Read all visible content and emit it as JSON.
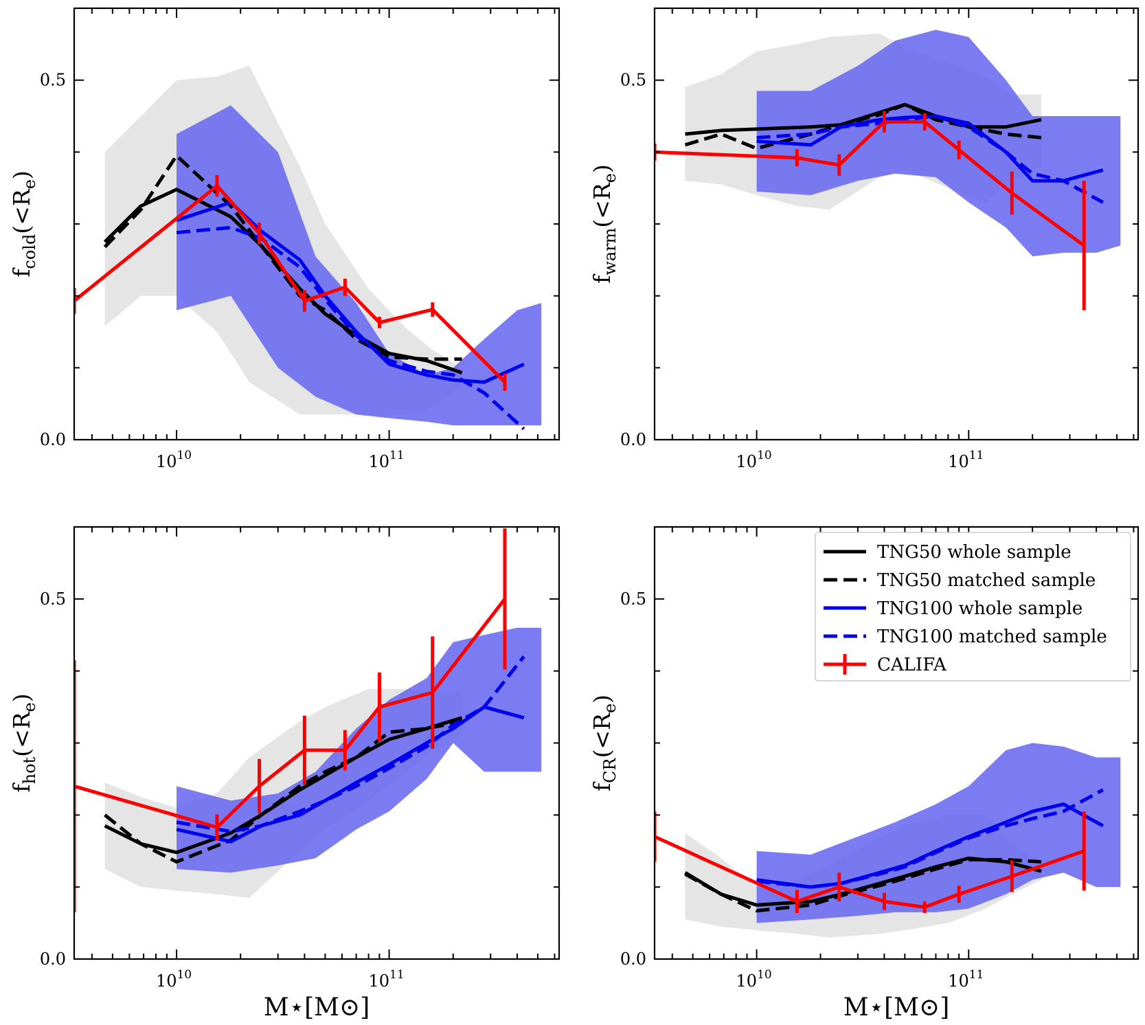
{
  "figure": {
    "x_axis_label": "M⋆[M⊙]",
    "x_ticks": [
      "10",
      "10"
    ],
    "x_tick_exponents": [
      "10",
      "11"
    ],
    "x_tick_values": [
      10000000000,
      100000000000
    ],
    "y_ticks": [
      "0.0",
      "0.5"
    ],
    "y_tick_values": [
      0,
      0.5
    ]
  },
  "colors": {
    "tng50": "#000000",
    "tng100": "#0000ee",
    "califa": "#ff0000",
    "tng50_band": "#e5e5e5",
    "tng100_band": "#6a6af0"
  },
  "legend": {
    "position": "top-right of bottom-right panel",
    "entries": [
      {
        "label": "TNG50 whole sample",
        "series": "tng50_whole"
      },
      {
        "label": "TNG50 matched sample",
        "series": "tng50_matched"
      },
      {
        "label": "TNG100 whole sample",
        "series": "tng100_whole"
      },
      {
        "label": "TNG100 matched sample",
        "series": "tng100_matched"
      },
      {
        "label": "CALIFA",
        "series": "califa"
      }
    ]
  },
  "chart_data": [
    {
      "type": "line",
      "panel": "cold",
      "ylabel_main": "f",
      "ylabel_sub": "cold",
      "ylabel_tail": "(<R",
      "ylabel_tail_sub": "e",
      "ylabel_close": ")",
      "xscale": "log",
      "xlim": [
        3300000000,
        630000000000
      ],
      "ylim": [
        0,
        0.6
      ],
      "show_xlabel": false,
      "show_legend": false,
      "series": [
        {
          "name": "TNG50 band",
          "kind": "band",
          "x": [
            4.6,
            6.8,
            10,
            15.5,
            22,
            38,
            50,
            80,
            120,
            160,
            220
          ],
          "lower": [
            0.158,
            0.2,
            0.2,
            0.15,
            0.08,
            0.035,
            0.035,
            0.035,
            0.035,
            0.045,
            0.075
          ],
          "upper": [
            0.4,
            0.45,
            0.5,
            0.505,
            0.52,
            0.38,
            0.3,
            0.21,
            0.155,
            0.125,
            0.1
          ]
        },
        {
          "name": "TNG100 band",
          "kind": "band",
          "x": [
            10,
            18,
            30,
            45,
            70,
            100,
            150,
            200,
            280,
            400,
            520
          ],
          "lower": [
            0.18,
            0.2,
            0.1,
            0.06,
            0.035,
            0.03,
            0.025,
            0.02,
            0.02,
            0.02,
            0.02
          ],
          "upper": [
            0.425,
            0.465,
            0.4,
            0.255,
            0.19,
            0.12,
            0.09,
            0.1,
            0.14,
            0.18,
            0.19
          ]
        },
        {
          "name": "tng50_whole",
          "kind": "line",
          "style": "solid",
          "x": [
            4.6,
            6.8,
            10,
            18,
            25,
            38,
            50,
            70,
            100,
            150,
            220
          ],
          "y": [
            0.275,
            0.325,
            0.348,
            0.31,
            0.27,
            0.21,
            0.175,
            0.145,
            0.12,
            0.11,
            0.093
          ]
        },
        {
          "name": "tng50_matched",
          "kind": "line",
          "style": "dashed",
          "x": [
            4.6,
            6.8,
            10,
            18,
            25,
            38,
            50,
            70,
            100,
            150,
            220
          ],
          "y": [
            0.268,
            0.32,
            0.395,
            0.325,
            0.27,
            0.2,
            0.18,
            0.14,
            0.115,
            0.112,
            0.112
          ]
        },
        {
          "name": "tng100_whole",
          "kind": "line",
          "style": "solid",
          "x": [
            10,
            18,
            25,
            38,
            50,
            70,
            100,
            150,
            200,
            280,
            430
          ],
          "y": [
            0.305,
            0.33,
            0.29,
            0.25,
            0.2,
            0.15,
            0.105,
            0.09,
            0.083,
            0.08,
            0.105
          ]
        },
        {
          "name": "tng100_matched",
          "kind": "line",
          "style": "dashed",
          "x": [
            10,
            18,
            25,
            38,
            50,
            70,
            100,
            150,
            200,
            280,
            430
          ],
          "y": [
            0.288,
            0.295,
            0.28,
            0.24,
            0.195,
            0.145,
            0.11,
            0.095,
            0.09,
            0.065,
            0.015
          ]
        },
        {
          "name": "califa",
          "kind": "errorline",
          "x": [
            3.3,
            15.5,
            24.5,
            40,
            62,
            90,
            160,
            350
          ],
          "y": [
            0.193,
            0.353,
            0.287,
            0.193,
            0.212,
            0.163,
            0.181,
            0.08
          ],
          "err": [
            0.018,
            0.015,
            0.015,
            0.015,
            0.012,
            0.008,
            0.01,
            0.012
          ]
        }
      ]
    },
    {
      "type": "line",
      "panel": "warm",
      "ylabel_main": "f",
      "ylabel_sub": "warm",
      "ylabel_tail": "(<R",
      "ylabel_tail_sub": "e",
      "ylabel_close": ")",
      "xscale": "log",
      "xlim": [
        3300000000,
        630000000000
      ],
      "ylim": [
        0,
        0.6
      ],
      "show_xlabel": false,
      "show_legend": false,
      "series": [
        {
          "name": "TNG50 band",
          "kind": "band",
          "x": [
            4.6,
            6.8,
            10,
            15.5,
            22,
            38,
            50,
            80,
            120,
            160,
            220
          ],
          "lower": [
            0.36,
            0.355,
            0.34,
            0.325,
            0.32,
            0.365,
            0.375,
            0.35,
            0.33,
            0.36,
            0.38
          ],
          "upper": [
            0.49,
            0.508,
            0.54,
            0.55,
            0.56,
            0.565,
            0.545,
            0.525,
            0.505,
            0.48,
            0.48
          ]
        },
        {
          "name": "TNG100 band",
          "kind": "band",
          "x": [
            10,
            18,
            30,
            45,
            70,
            100,
            150,
            200,
            280,
            400,
            520
          ],
          "lower": [
            0.345,
            0.34,
            0.36,
            0.37,
            0.365,
            0.33,
            0.295,
            0.255,
            0.26,
            0.26,
            0.27
          ],
          "upper": [
            0.485,
            0.485,
            0.52,
            0.555,
            0.57,
            0.56,
            0.5,
            0.45,
            0.45,
            0.45,
            0.45
          ]
        },
        {
          "name": "tng50_whole",
          "kind": "line",
          "style": "solid",
          "x": [
            4.6,
            6.8,
            10,
            18,
            25,
            38,
            50,
            70,
            100,
            150,
            220
          ],
          "y": [
            0.425,
            0.43,
            0.432,
            0.435,
            0.438,
            0.455,
            0.466,
            0.45,
            0.435,
            0.435,
            0.445
          ]
        },
        {
          "name": "tng50_matched",
          "kind": "line",
          "style": "dashed",
          "x": [
            4.6,
            6.8,
            10,
            18,
            25,
            38,
            50,
            70,
            100,
            150,
            220
          ],
          "y": [
            0.41,
            0.425,
            0.405,
            0.425,
            0.438,
            0.452,
            0.466,
            0.445,
            0.435,
            0.425,
            0.42
          ]
        },
        {
          "name": "tng100_whole",
          "kind": "line",
          "style": "solid",
          "x": [
            10,
            18,
            25,
            38,
            50,
            70,
            100,
            150,
            200,
            280,
            430
          ],
          "y": [
            0.415,
            0.41,
            0.435,
            0.445,
            0.448,
            0.45,
            0.44,
            0.4,
            0.36,
            0.36,
            0.375
          ]
        },
        {
          "name": "tng100_matched",
          "kind": "line",
          "style": "dashed",
          "x": [
            10,
            18,
            25,
            38,
            50,
            70,
            100,
            150,
            200,
            280,
            430
          ],
          "y": [
            0.42,
            0.425,
            0.435,
            0.44,
            0.445,
            0.45,
            0.435,
            0.4,
            0.37,
            0.36,
            0.33
          ]
        },
        {
          "name": "califa",
          "kind": "errorline",
          "x": [
            3.3,
            15.5,
            24.5,
            40,
            62,
            90,
            160,
            350
          ],
          "y": [
            0.4,
            0.392,
            0.382,
            0.442,
            0.442,
            0.403,
            0.343,
            0.27
          ],
          "err": [
            0.012,
            0.012,
            0.015,
            0.015,
            0.012,
            0.013,
            0.03,
            0.09
          ]
        }
      ]
    },
    {
      "type": "line",
      "panel": "hot",
      "ylabel_main": "f",
      "ylabel_sub": "hot",
      "ylabel_tail": "(<R",
      "ylabel_tail_sub": "e",
      "ylabel_close": ")",
      "xscale": "log",
      "xlim": [
        3300000000,
        630000000000
      ],
      "ylim": [
        0,
        0.6
      ],
      "show_xlabel": true,
      "show_legend": false,
      "series": [
        {
          "name": "TNG50 band",
          "kind": "band",
          "x": [
            4.6,
            6.8,
            10,
            15.5,
            22,
            38,
            50,
            80,
            120,
            160,
            220
          ],
          "lower": [
            0.125,
            0.1,
            0.095,
            0.09,
            0.085,
            0.15,
            0.18,
            0.22,
            0.26,
            0.29,
            0.31
          ],
          "upper": [
            0.245,
            0.225,
            0.21,
            0.23,
            0.28,
            0.33,
            0.35,
            0.375,
            0.375,
            0.37,
            0.37
          ]
        },
        {
          "name": "TNG100 band",
          "kind": "band",
          "x": [
            10,
            18,
            30,
            45,
            70,
            100,
            150,
            200,
            280,
            400,
            520
          ],
          "lower": [
            0.125,
            0.12,
            0.13,
            0.14,
            0.18,
            0.205,
            0.25,
            0.3,
            0.26,
            0.26,
            0.26
          ],
          "upper": [
            0.24,
            0.22,
            0.23,
            0.26,
            0.32,
            0.36,
            0.39,
            0.44,
            0.45,
            0.46,
            0.46
          ]
        },
        {
          "name": "tng50_whole",
          "kind": "line",
          "style": "solid",
          "x": [
            4.6,
            6.8,
            10,
            18,
            25,
            38,
            50,
            70,
            100,
            150,
            220
          ],
          "y": [
            0.185,
            0.16,
            0.148,
            0.175,
            0.2,
            0.235,
            0.255,
            0.28,
            0.305,
            0.32,
            0.335
          ]
        },
        {
          "name": "tng50_matched",
          "kind": "line",
          "style": "dashed",
          "x": [
            4.6,
            6.8,
            10,
            18,
            25,
            38,
            50,
            70,
            100,
            150,
            220
          ],
          "y": [
            0.2,
            0.16,
            0.135,
            0.165,
            0.2,
            0.24,
            0.26,
            0.28,
            0.315,
            0.32,
            0.33
          ]
        },
        {
          "name": "tng100_whole",
          "kind": "line",
          "style": "solid",
          "x": [
            10,
            18,
            25,
            38,
            50,
            70,
            100,
            150,
            200,
            280,
            430
          ],
          "y": [
            0.18,
            0.163,
            0.185,
            0.2,
            0.22,
            0.245,
            0.27,
            0.3,
            0.32,
            0.35,
            0.335
          ]
        },
        {
          "name": "tng100_matched",
          "kind": "line",
          "style": "dashed",
          "x": [
            10,
            18,
            25,
            38,
            50,
            70,
            100,
            150,
            200,
            280,
            430
          ],
          "y": [
            0.19,
            0.177,
            0.185,
            0.205,
            0.22,
            0.24,
            0.265,
            0.295,
            0.325,
            0.35,
            0.42
          ]
        },
        {
          "name": "califa",
          "kind": "errorline",
          "x": [
            3.3,
            15.5,
            24.5,
            40,
            62,
            90,
            160,
            350
          ],
          "y": [
            0.24,
            0.183,
            0.24,
            0.29,
            0.29,
            0.35,
            0.37,
            0.5
          ],
          "err": [
            0.175,
            0.018,
            0.038,
            0.048,
            0.028,
            0.048,
            0.078,
            0.098
          ]
        }
      ]
    },
    {
      "type": "line",
      "panel": "CR",
      "ylabel_main": "f",
      "ylabel_sub": "CR",
      "ylabel_tail": "(<R",
      "ylabel_tail_sub": "e",
      "ylabel_close": ")",
      "xscale": "log",
      "xlim": [
        3300000000,
        630000000000
      ],
      "ylim": [
        0,
        0.6
      ],
      "show_xlabel": true,
      "show_legend": true,
      "series": [
        {
          "name": "TNG50 band",
          "kind": "band",
          "x": [
            4.6,
            6.8,
            10,
            15.5,
            22,
            38,
            50,
            80,
            120,
            160,
            220
          ],
          "lower": [
            0.055,
            0.045,
            0.04,
            0.035,
            0.03,
            0.035,
            0.04,
            0.05,
            0.07,
            0.09,
            0.11
          ],
          "upper": [
            0.175,
            0.14,
            0.1,
            0.11,
            0.13,
            0.17,
            0.185,
            0.2,
            0.2,
            0.16,
            0.13
          ]
        },
        {
          "name": "TNG100 band",
          "kind": "band",
          "x": [
            10,
            18,
            30,
            45,
            70,
            100,
            150,
            200,
            280,
            400,
            520
          ],
          "lower": [
            0.05,
            0.055,
            0.06,
            0.065,
            0.065,
            0.07,
            0.09,
            0.11,
            0.12,
            0.1,
            0.1
          ],
          "upper": [
            0.15,
            0.145,
            0.17,
            0.19,
            0.215,
            0.24,
            0.29,
            0.3,
            0.295,
            0.28,
            0.28
          ]
        },
        {
          "name": "tng50_whole",
          "kind": "line",
          "style": "solid",
          "x": [
            4.6,
            6.8,
            10,
            18,
            25,
            38,
            50,
            70,
            100,
            150,
            220
          ],
          "y": [
            0.12,
            0.09,
            0.075,
            0.08,
            0.09,
            0.105,
            0.115,
            0.128,
            0.14,
            0.135,
            0.122
          ]
        },
        {
          "name": "tng50_matched",
          "kind": "line",
          "style": "dashed",
          "x": [
            4.6,
            6.8,
            10,
            18,
            25,
            38,
            50,
            70,
            100,
            150,
            220
          ],
          "y": [
            0.118,
            0.09,
            0.067,
            0.075,
            0.088,
            0.102,
            0.112,
            0.125,
            0.138,
            0.138,
            0.135
          ]
        },
        {
          "name": "tng100_whole",
          "kind": "line",
          "style": "solid",
          "x": [
            10,
            18,
            25,
            38,
            50,
            70,
            100,
            150,
            200,
            280,
            430
          ],
          "y": [
            0.11,
            0.1,
            0.105,
            0.12,
            0.13,
            0.15,
            0.17,
            0.19,
            0.205,
            0.215,
            0.185
          ]
        },
        {
          "name": "tng100_matched",
          "kind": "line",
          "style": "dashed",
          "x": [
            10,
            18,
            25,
            38,
            50,
            70,
            100,
            150,
            200,
            280,
            430
          ],
          "y": [
            0.108,
            0.1,
            0.105,
            0.118,
            0.128,
            0.148,
            0.168,
            0.185,
            0.195,
            0.205,
            0.235
          ]
        },
        {
          "name": "califa",
          "kind": "errorline",
          "x": [
            3.3,
            15.5,
            24.5,
            40,
            62,
            90,
            160,
            350
          ],
          "y": [
            0.17,
            0.08,
            0.1,
            0.08,
            0.072,
            0.09,
            0.115,
            0.15
          ],
          "err": [
            0.035,
            0.016,
            0.02,
            0.012,
            0.008,
            0.012,
            0.022,
            0.055
          ]
        }
      ]
    }
  ]
}
